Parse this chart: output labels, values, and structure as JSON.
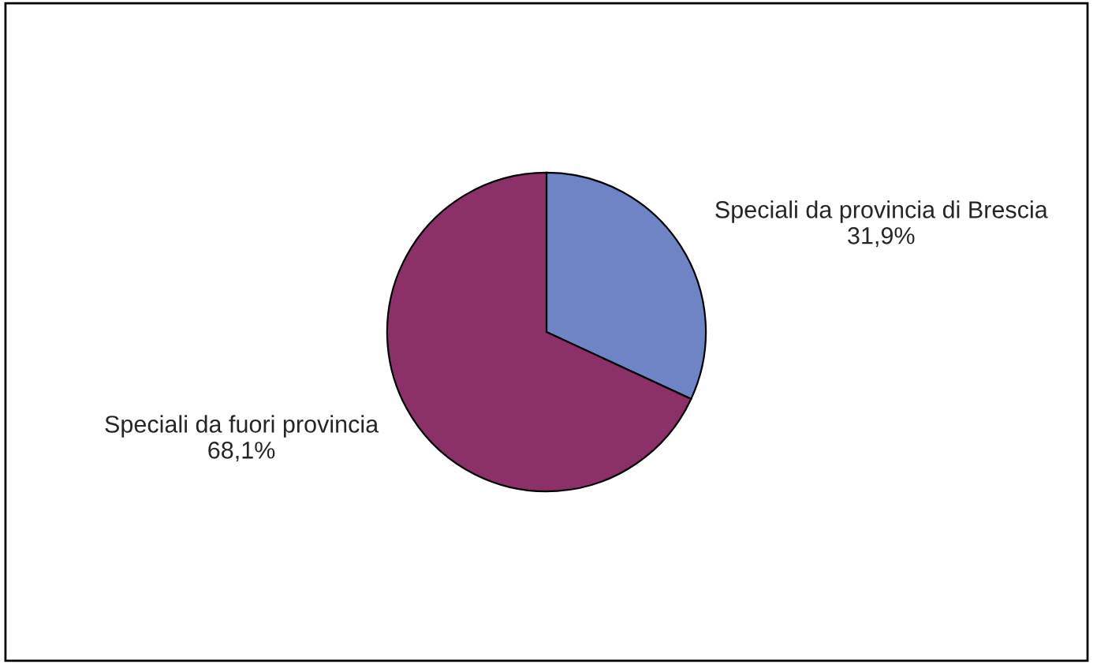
{
  "chart_data": {
    "type": "pie",
    "categories": [
      "Speciali da provincia di Brescia",
      "Speciali da fuori provincia"
    ],
    "values": [
      31.9,
      68.1
    ],
    "colors": [
      "#6f84c4",
      "#8b3068"
    ],
    "value_labels": [
      "31,9%",
      "68,1%"
    ],
    "legend": false
  }
}
